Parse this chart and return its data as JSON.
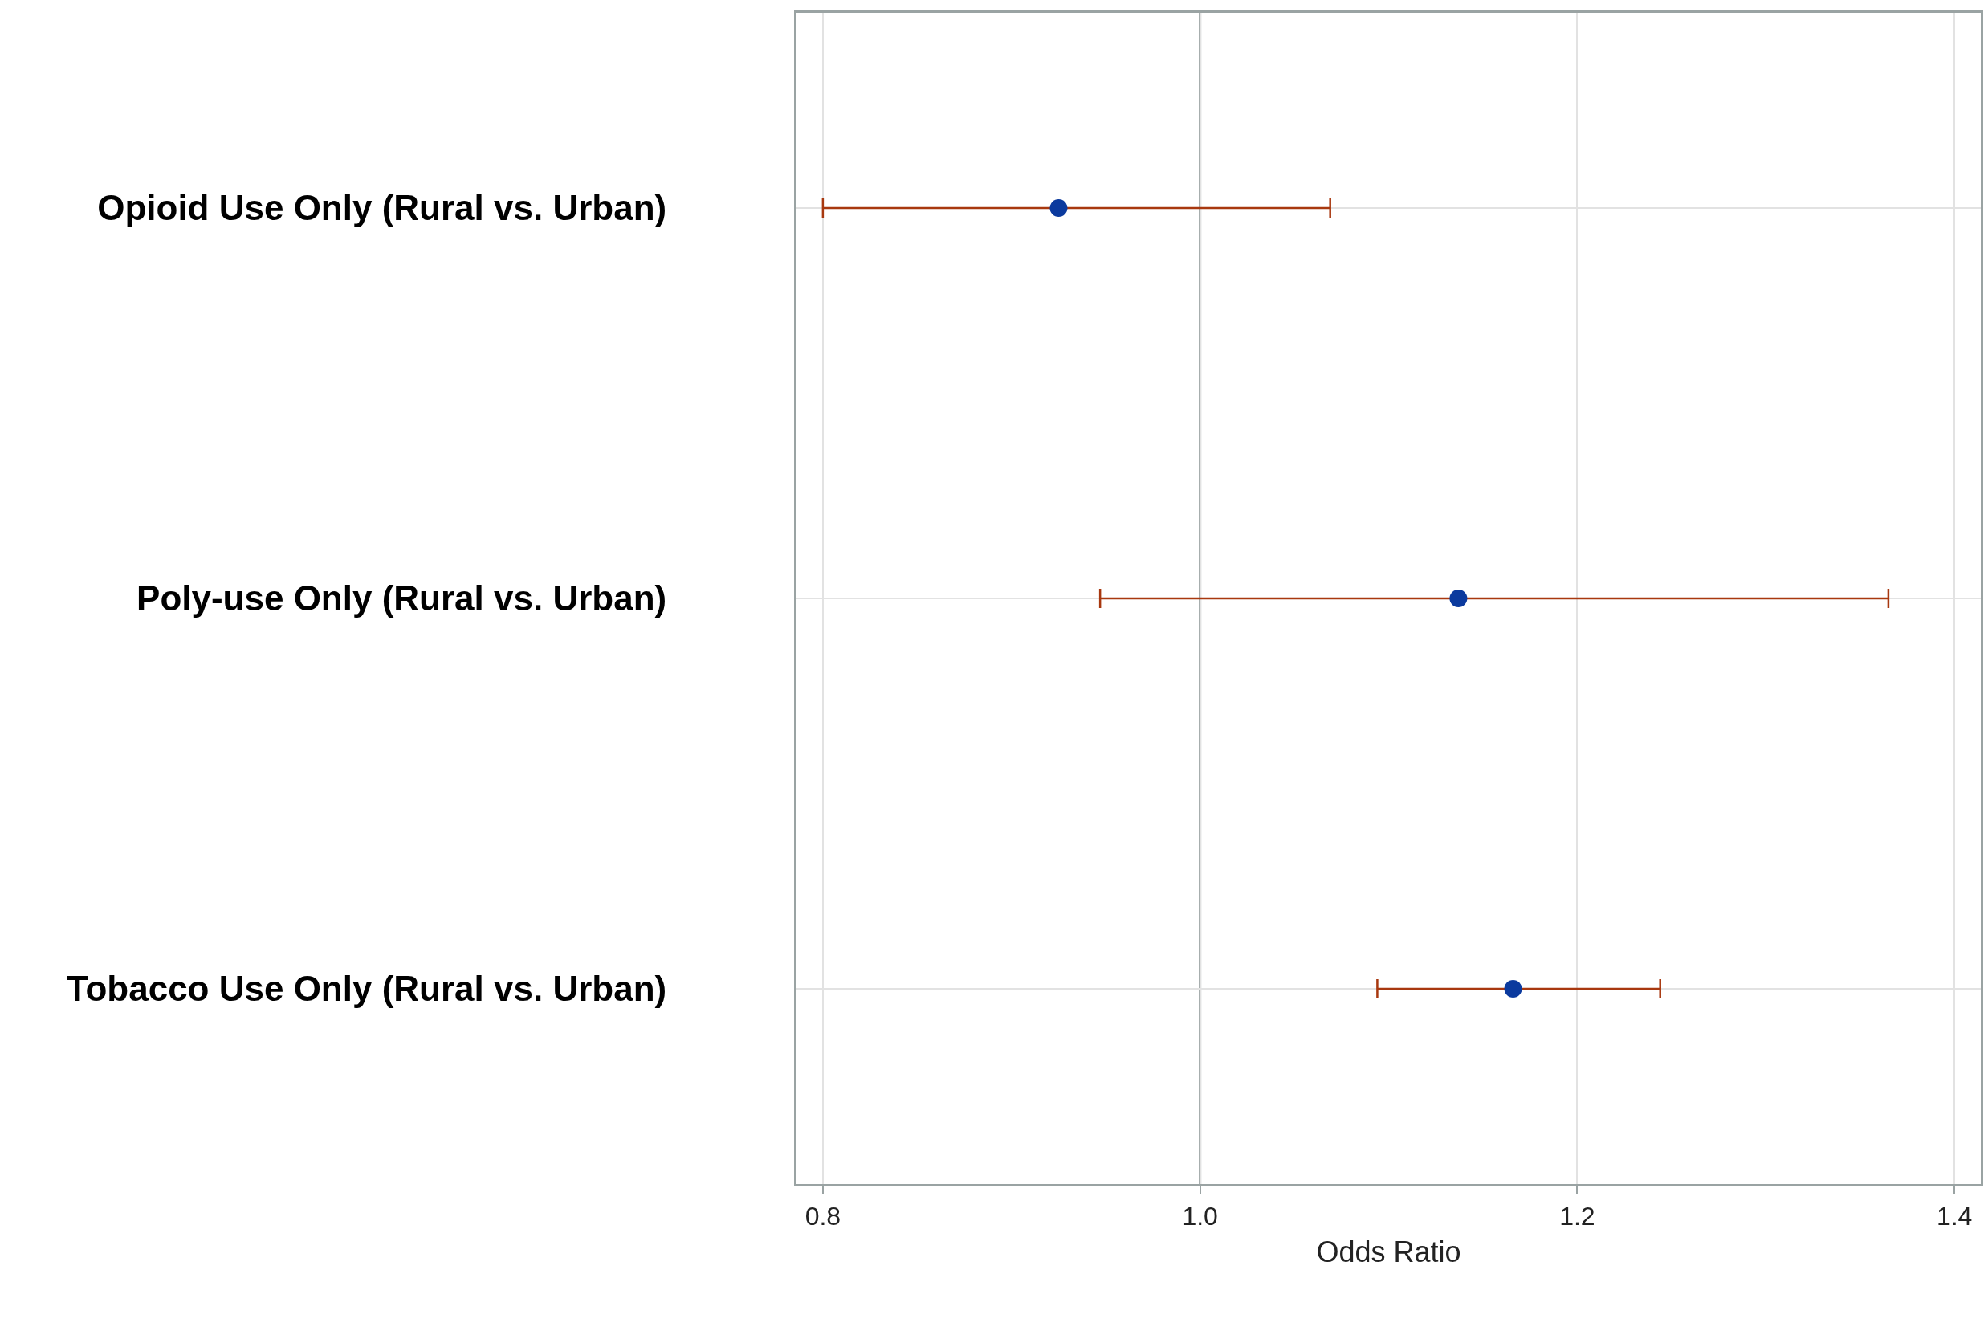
{
  "chart_data": {
    "type": "scatter",
    "orientation": "horizontal",
    "xlabel": "Odds Ratio",
    "categories": [
      "Opioid Use Only (Rural vs. Urban)",
      "Poly-use Only (Rural vs. Urban)",
      "Tobacco Use Only (Rural vs. Urban)"
    ],
    "values": [
      0.925,
      1.137,
      1.166
    ],
    "errors": [
      [
        0.8,
        1.069
      ],
      [
        0.947,
        1.365
      ],
      [
        1.094,
        1.244
      ]
    ],
    "color": "#0b3a9e",
    "xlim": [
      0.786,
      1.414
    ],
    "xticks": [
      {
        "value": 0.8,
        "label": "0.8"
      },
      {
        "value": 1.0,
        "label": "1.0"
      },
      {
        "value": 1.2,
        "label": "1.2"
      },
      {
        "value": 1.4,
        "label": "1.4"
      }
    ],
    "ref_lines": [
      {
        "axis": "x",
        "value": 1.0,
        "color": "#9aa3a3"
      }
    ],
    "grid": true,
    "marker": "circle"
  }
}
